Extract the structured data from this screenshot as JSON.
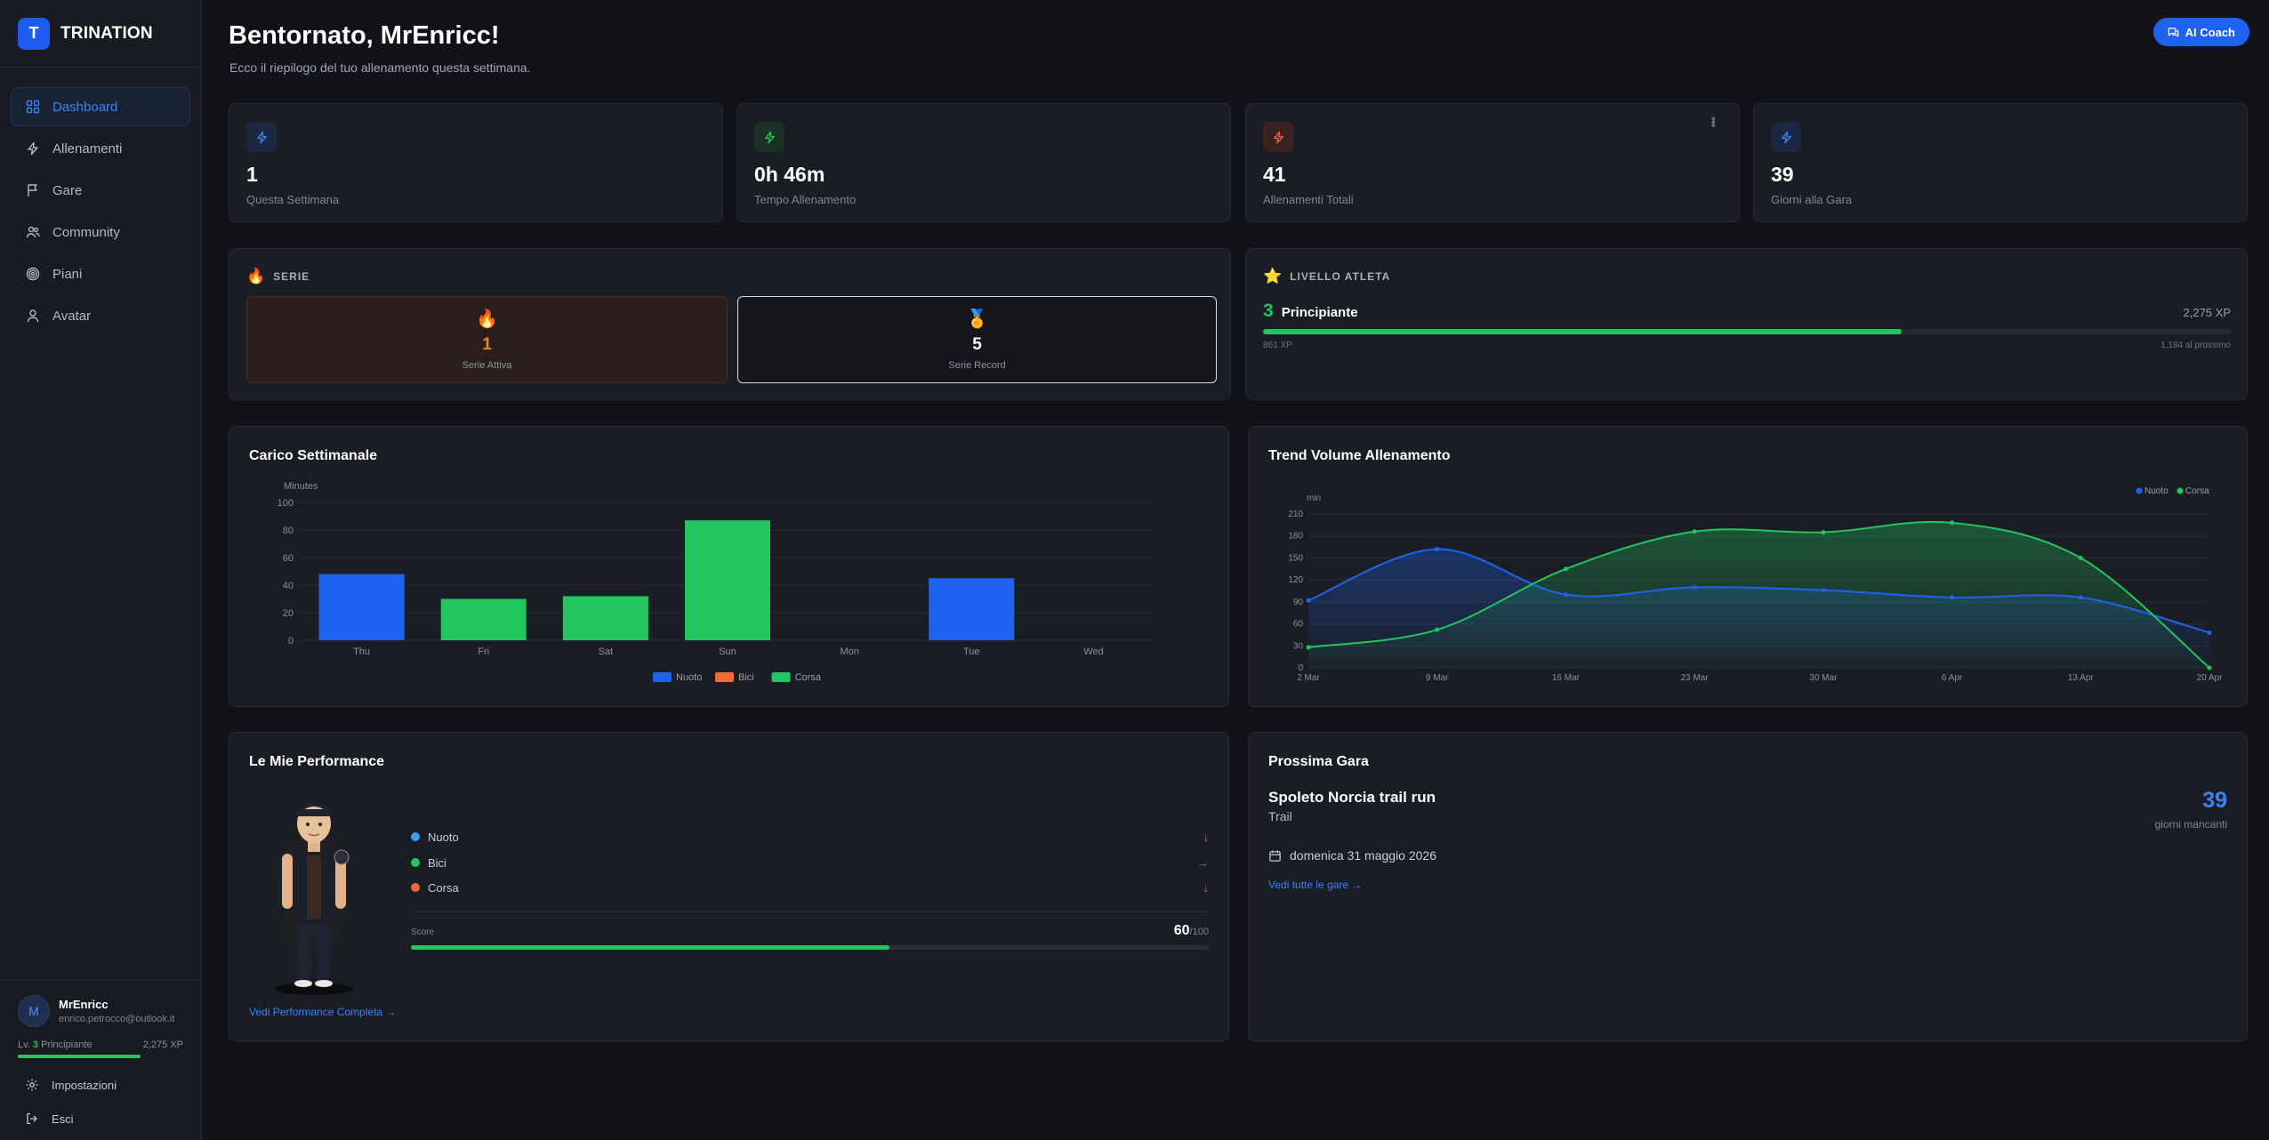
{
  "brand": {
    "logo_letter": "T",
    "name": "TRINATION"
  },
  "nav": [
    {
      "label": "Dashboard",
      "icon": "grid-icon",
      "active": true
    },
    {
      "label": "Allenamenti",
      "icon": "bolt-icon"
    },
    {
      "label": "Gare",
      "icon": "flag-icon"
    },
    {
      "label": "Community",
      "icon": "users-icon"
    },
    {
      "label": "Piani",
      "icon": "target-icon"
    },
    {
      "label": "Avatar",
      "icon": "user-icon"
    }
  ],
  "user": {
    "initial": "M",
    "name": "MrEnricc",
    "email": "enrico.petrocco@outlook.it",
    "level_prefix": "Lv.",
    "level_num": "3",
    "level_name": "Principiante",
    "xp": "2,275 XP",
    "settings_label": "Impostazioni",
    "logout_label": "Esci"
  },
  "header": {
    "title": "Bentornato, MrEnricc!",
    "subtitle": "Ecco il riepilogo del tuo allenamento questa settimana.",
    "coach_label": "AI Coach"
  },
  "stats": [
    {
      "value": "1",
      "label": "Questa Settimana",
      "color": "#3b82f6",
      "bg": "#1c2841"
    },
    {
      "value": "0h 46m",
      "label": "Tempo Allenamento",
      "color": "#22c55e",
      "bg": "#1b3026"
    },
    {
      "value": "41",
      "label": "Allenamenti Totali",
      "color": "#f0653a",
      "bg": "#3a2220"
    },
    {
      "value": "39",
      "label": "Giorni alla Gara",
      "color": "#3b82f6",
      "bg": "#1c2841"
    }
  ],
  "streak": {
    "heading": "SERIE",
    "active_value": "1",
    "active_label": "Serie Attiva",
    "record_value": "5",
    "record_label": "Serie Record"
  },
  "level": {
    "heading": "LIVELLO ATLETA",
    "level_num": "3",
    "level_name": "Principiante",
    "xp_total": "2,275 XP",
    "progress": 0.66,
    "xp_current": "861 XP",
    "xp_next": "1,184 al prossimo"
  },
  "weekly_load": {
    "title": "Carico Settimanale"
  },
  "trend": {
    "title": "Trend Volume Allenamento"
  },
  "chart_data": [
    {
      "type": "bar",
      "title": "Carico Settimanale",
      "ylabel": "Minutes",
      "categories": [
        "Thu",
        "Fri",
        "Sat",
        "Sun",
        "Mon",
        "Tue",
        "Wed"
      ],
      "ylim": [
        0,
        100
      ],
      "yticks": [
        0,
        20,
        40,
        60,
        80,
        100
      ],
      "series": [
        {
          "name": "Nuoto",
          "color": "#1e63f0",
          "values": [
            48,
            0,
            0,
            0,
            0,
            45,
            0
          ]
        },
        {
          "name": "Bici",
          "color": "#f26b3a",
          "values": [
            0,
            0,
            0,
            0,
            0,
            0,
            0
          ]
        },
        {
          "name": "Corsa",
          "color": "#22c55e",
          "values": [
            0,
            30,
            32,
            87,
            0,
            0,
            0
          ]
        }
      ],
      "legend": "bottom"
    },
    {
      "type": "area",
      "title": "Trend Volume Allenamento",
      "ylabel": "min",
      "categories": [
        "2 Mar",
        "9 Mar",
        "16 Mar",
        "23 Mar",
        "30 Mar",
        "6 Apr",
        "13 Apr",
        "20 Apr"
      ],
      "ylim": [
        0,
        210
      ],
      "yticks": [
        0,
        30,
        60,
        90,
        120,
        150,
        180,
        210
      ],
      "series": [
        {
          "name": "Nuoto",
          "color": "#1e63f0",
          "values": [
            92,
            162,
            100,
            110,
            106,
            96,
            96,
            48
          ]
        },
        {
          "name": "Corsa",
          "color": "#22c55e",
          "values": [
            28,
            52,
            135,
            186,
            185,
            198,
            150,
            0
          ]
        }
      ],
      "legend": "top-right"
    }
  ],
  "performance": {
    "title": "Le Mie Performance",
    "rows": [
      {
        "label": "Nuoto",
        "color": "#3b9cf0",
        "trend": "↓",
        "trend_color": "#f0653a"
      },
      {
        "label": "Bici",
        "color": "#22c55e",
        "trend": "→",
        "trend_color": "#3b82f6"
      },
      {
        "label": "Corsa",
        "color": "#f0653a",
        "trend": "↓",
        "trend_color": "#f0653a"
      }
    ],
    "score_label": "Score",
    "score": "60",
    "score_max": "/100",
    "score_fraction": 0.6,
    "link": "Vedi Performance Completa →"
  },
  "race": {
    "title": "Prossima Gara",
    "name": "Spoleto Norcia trail run",
    "type": "Trail",
    "days": "39",
    "days_label": "giorni mancanti",
    "date": "domenica 31 maggio 2026",
    "link": "Vedi tutte le gare →"
  }
}
